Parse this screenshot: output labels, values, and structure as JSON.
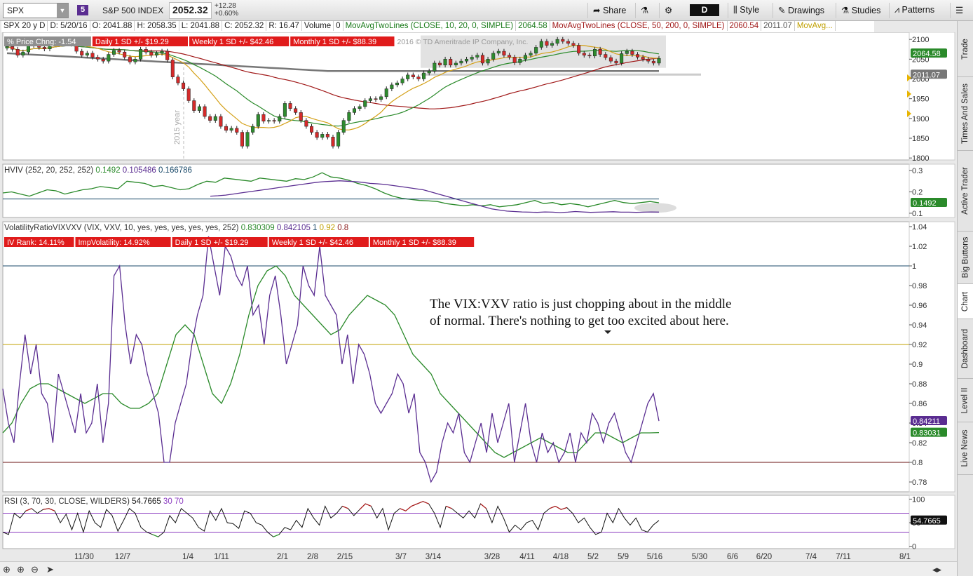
{
  "toolbar": {
    "symbol": "SPX",
    "badge": "5",
    "instrument": "S&P 500 INDEX",
    "last": "2052.32",
    "change": "+12.28",
    "change_pct": "+0.60%",
    "share": "Share",
    "aggregation": "D",
    "style": "Style",
    "drawings": "Drawings",
    "studies": "Studies",
    "patterns": "Patterns"
  },
  "infobar": {
    "period": "SPX 20 y D",
    "date": "D: 5/20/16",
    "open": "O: 2041.88",
    "high": "H: 2058.35",
    "low": "L: 2041.88",
    "close": "C: 2052.32",
    "range": "R: 16.47",
    "vol_label": "Volume",
    "vol": "0",
    "ma1_label": "MovAvgTwoLines (CLOSE, 10, 20, 0, SIMPLE)",
    "ma1_val": "2064.58",
    "ma2_label": "MovAvgTwoLines (CLOSE, 50, 200, 0, SIMPLE)",
    "ma2_val": "2060.54",
    "ma2_val2": "2011.07",
    "ma3": "MovAvg..."
  },
  "price_labels": {
    "pct": "% Price Chng: -1.54",
    "daily": "Daily 1 SD +/- $19.29",
    "weekly": "Weekly 1 SD +/- $42.46",
    "monthly": "Monthly 1 SD +/- $88.39",
    "copyright": "2016 © TD Ameritrade IP Company, Inc.",
    "year": "2015 year"
  },
  "hviv_header": {
    "label": "HVIV (252, 20, 252, 252)",
    "v1": "0.1492",
    "v2": "0.105486",
    "v3": "0.166786"
  },
  "vr_header": {
    "label": "VolatilityRatioVIXVXV (VIX, VXV, 10, yes, yes, yes, yes, yes, 252)",
    "v1": "0.830309",
    "v2": "0.842105",
    "v3": "1",
    "v4": "0.92",
    "v5": "0.8"
  },
  "vr_labels": {
    "ivrank": "IV Rank: 14.11%",
    "impvol": "ImpVolatility: 14.92%",
    "daily": "Daily 1 SD +/- $19.29",
    "weekly": "Weekly 1 SD +/- $42.46",
    "monthly": "Monthly 1 SD +/- $88.39"
  },
  "annotation": {
    "line1": "The VIX:VXV ratio is just chopping about in the middle",
    "line2": "of normal.  There's nothing to get too excited about here."
  },
  "rsi_header": {
    "label": "RSI (3, 70, 30, CLOSE, WILDERS)",
    "v1": "54.7665",
    "v2": "30",
    "v3": "70"
  },
  "sidetabs": [
    "Trade",
    "Times And Sales",
    "Active Trader",
    "Big Buttons",
    "Chart",
    "Dashboard",
    "Level II",
    "Live News"
  ],
  "colors": {
    "up": "#2e8b2e",
    "down": "#d42a2a",
    "ma10": "#d4a017",
    "ma20": "#2a8a2a",
    "ma50": "#a01818",
    "ma200": "#777777",
    "vr": "#5a2d91",
    "vr_ma": "#2a8a2a",
    "red_label": "#e01b1b"
  },
  "chart_data": [
    {
      "type": "candlestick",
      "title": "",
      "yticks": [
        1800,
        1850,
        1900,
        1950,
        2000,
        2050,
        2100
      ],
      "ylim": [
        1795,
        2118
      ],
      "xticks": [
        "11/30",
        "12/7",
        "1/4",
        "1/11",
        "2/1",
        "2/8",
        "2/15",
        "3/7",
        "3/14",
        "3/28",
        "4/11",
        "4/18",
        "5/2",
        "5/9",
        "5/16",
        "5/30",
        "6/6",
        "6/20",
        "7/4",
        "7/11",
        "8/1"
      ],
      "last_labels": [
        "2064.58",
        "2060.54",
        "2011.07"
      ],
      "close": [
        2082,
        2075,
        2060,
        2068,
        2085,
        2090,
        2080,
        2076,
        2095,
        2100,
        2098,
        2094,
        2088,
        2070,
        2060,
        2065,
        2055,
        2050,
        2045,
        2062,
        2072,
        2068,
        2055,
        2043,
        2050,
        2075,
        2068,
        2060,
        2065,
        2070,
        2048,
        2005,
        1990,
        1975,
        1945,
        1920,
        1930,
        1905,
        1895,
        1905,
        1880,
        1870,
        1875,
        1865,
        1830,
        1865,
        1880,
        1910,
        1893,
        1895,
        1893,
        1905,
        1938,
        1925,
        1915,
        1895,
        1880,
        1865,
        1852,
        1860,
        1853,
        1830,
        1865,
        1895,
        1915,
        1925,
        1930,
        1945,
        1950,
        1948,
        1955,
        1975,
        1985,
        1990,
        2000,
        2010,
        2005,
        2000,
        2015,
        2020,
        2040,
        2035,
        2050,
        2035,
        2040,
        2045,
        2050,
        2055,
        2060,
        2040,
        2050,
        2065,
        2070,
        2060,
        2055,
        2041,
        2050,
        2060,
        2065,
        2080,
        2095,
        2085,
        2090,
        2100,
        2095,
        2090,
        2085,
        2065,
        2060,
        2058,
        2075,
        2062,
        2054,
        2045,
        2040,
        2064,
        2070,
        2062,
        2055,
        2050,
        2045,
        2040,
        2052
      ]
    },
    {
      "type": "line",
      "title": "",
      "yticks": [
        0.1,
        0.2,
        0.3
      ],
      "ylim": [
        0.08,
        0.33
      ],
      "series": [
        {
          "values": [
            0.195,
            0.2,
            0.19,
            0.18,
            0.195,
            0.21,
            0.205,
            0.19,
            0.2,
            0.21,
            0.215,
            0.225,
            0.22,
            0.215,
            0.25,
            0.245,
            0.24,
            0.225,
            0.23,
            0.22,
            0.21,
            0.215,
            0.235,
            0.25,
            0.245,
            0.265,
            0.26,
            0.255,
            0.25,
            0.265,
            0.26,
            0.255,
            0.25,
            0.262,
            0.258,
            0.27,
            0.29,
            0.27,
            0.265,
            0.255,
            0.24,
            0.23,
            0.215,
            0.195,
            0.18,
            0.17,
            0.165,
            0.16,
            0.158,
            0.155,
            0.145,
            0.14,
            0.135,
            0.14,
            0.135,
            0.14,
            0.13,
            0.135,
            0.14,
            0.15,
            0.16,
            0.145,
            0.15,
            0.14,
            0.145,
            0.14,
            0.13,
            0.14,
            0.15,
            0.16,
            0.15,
            0.145,
            0.15,
            0.155,
            0.1492
          ]
        },
        {
          "values": [
            0.18,
            0.182,
            0.185,
            0.19,
            0.195,
            0.2,
            0.205,
            0.21,
            0.215,
            0.22,
            0.225,
            0.23,
            0.235,
            0.24,
            0.245,
            0.248,
            0.25,
            0.252,
            0.25,
            0.248,
            0.245,
            0.24,
            0.238,
            0.235,
            0.23,
            0.225,
            0.22,
            0.215,
            0.21,
            0.2,
            0.19,
            0.18,
            0.17,
            0.16,
            0.15,
            0.14,
            0.13,
            0.12,
            0.115,
            0.11,
            0.108,
            0.106,
            0.105,
            0.104,
            0.106,
            0.105,
            0.103,
            0.105,
            0.108,
            0.106,
            0.104,
            0.105,
            0.106,
            0.107,
            0.105,
            0.105,
            0.104,
            0.105,
            0.106,
            0.105486
          ]
        },
        {
          "values": [
            0.166786
          ]
        }
      ]
    },
    {
      "type": "line",
      "title": "",
      "yticks": [
        0.78,
        0.8,
        0.82,
        0.84,
        0.86,
        0.88,
        0.9,
        0.92,
        0.94,
        0.96,
        0.98,
        1,
        1.02,
        1.04
      ],
      "ylim": [
        0.77,
        1.045
      ],
      "hlines": [
        1,
        0.92,
        0.8
      ],
      "last_labels": [
        "0.84211",
        "0.83031"
      ],
      "series": [
        {
          "name": "",
          "values": [
            0.875,
            0.84,
            0.82,
            0.88,
            0.93,
            0.89,
            0.92,
            0.87,
            0.86,
            0.82,
            0.89,
            0.87,
            0.85,
            0.83,
            0.87,
            0.83,
            0.84,
            0.88,
            0.82,
            0.86,
            0.99,
            1.0,
            0.94,
            0.9,
            0.93,
            0.92,
            0.89,
            0.87,
            0.85,
            0.8,
            0.8,
            0.84,
            0.86,
            0.88,
            0.92,
            0.95,
            0.97,
            1.03,
            1.0,
            0.97,
            1.02,
            1.01,
            0.99,
            0.98,
            1.0,
            0.95,
            0.96,
            0.92,
            0.97,
            0.99,
            0.95,
            0.9,
            0.92,
            0.94,
            1.0,
            0.98,
            0.97,
            1.02,
            0.97,
            0.96,
            0.95,
            0.9,
            0.93,
            0.88,
            0.92,
            0.91,
            0.89,
            0.86,
            0.85,
            0.86,
            0.87,
            0.89,
            0.88,
            0.85,
            0.87,
            0.81,
            0.8,
            0.78,
            0.79,
            0.82,
            0.84,
            0.83,
            0.85,
            0.81,
            0.8,
            0.82,
            0.84,
            0.81,
            0.85,
            0.82,
            0.84,
            0.86,
            0.8,
            0.83,
            0.86,
            0.82,
            0.8,
            0.83,
            0.81,
            0.82,
            0.8,
            0.81,
            0.83,
            0.8,
            0.83,
            0.82,
            0.85,
            0.84,
            0.82,
            0.84,
            0.85,
            0.83,
            0.81,
            0.8,
            0.82,
            0.84,
            0.86,
            0.87,
            0.842105
          ]
        },
        {
          "name": "",
          "values": [
            0.83,
            0.84,
            0.86,
            0.875,
            0.88,
            0.88,
            0.875,
            0.87,
            0.865,
            0.86,
            0.865,
            0.87,
            0.87,
            0.86,
            0.855,
            0.855,
            0.86,
            0.87,
            0.9,
            0.93,
            0.94,
            0.93,
            0.9,
            0.87,
            0.86,
            0.88,
            0.91,
            0.95,
            0.98,
            0.995,
            1.0,
            0.99,
            0.97,
            0.96,
            0.95,
            0.94,
            0.93,
            0.935,
            0.95,
            0.96,
            0.97,
            0.965,
            0.96,
            0.95,
            0.93,
            0.91,
            0.9,
            0.89,
            0.87,
            0.86,
            0.85,
            0.84,
            0.83,
            0.82,
            0.81,
            0.805,
            0.81,
            0.815,
            0.82,
            0.825,
            0.82,
            0.815,
            0.81,
            0.81,
            0.82,
            0.83,
            0.83,
            0.825,
            0.82,
            0.825,
            0.83,
            0.83,
            0.830309
          ]
        }
      ]
    },
    {
      "type": "line",
      "title": "",
      "yticks": [
        0,
        50,
        100
      ],
      "ylim": [
        -5,
        108
      ],
      "hlines": [
        70,
        30
      ],
      "last_labels": [
        "54.7665"
      ],
      "series": [
        {
          "name": "",
          "values": [
            30,
            25,
            70,
            60,
            75,
            80,
            70,
            78,
            80,
            75,
            50,
            68,
            35,
            70,
            30,
            75,
            50,
            40,
            78,
            65,
            32,
            55,
            80,
            70,
            40,
            30,
            25,
            20,
            30,
            65,
            50,
            80,
            70,
            60,
            40,
            32,
            75,
            55,
            80,
            50,
            48,
            38,
            75,
            70,
            50,
            45,
            30,
            20,
            25,
            40,
            35,
            55,
            40,
            80,
            60,
            45,
            85,
            60,
            70,
            85,
            80,
            65,
            78,
            90,
            85,
            60,
            80,
            35,
            70,
            80,
            75,
            85,
            90,
            95,
            90,
            70,
            40,
            85,
            80,
            70,
            60,
            75,
            60,
            90,
            80,
            50,
            85,
            60,
            30,
            45,
            35,
            50,
            55,
            35,
            70,
            80,
            85,
            78,
            82,
            70,
            50,
            60,
            40,
            25,
            30,
            70,
            50,
            80,
            60,
            45,
            60,
            35,
            30,
            45,
            54.7665
          ]
        }
      ]
    }
  ]
}
